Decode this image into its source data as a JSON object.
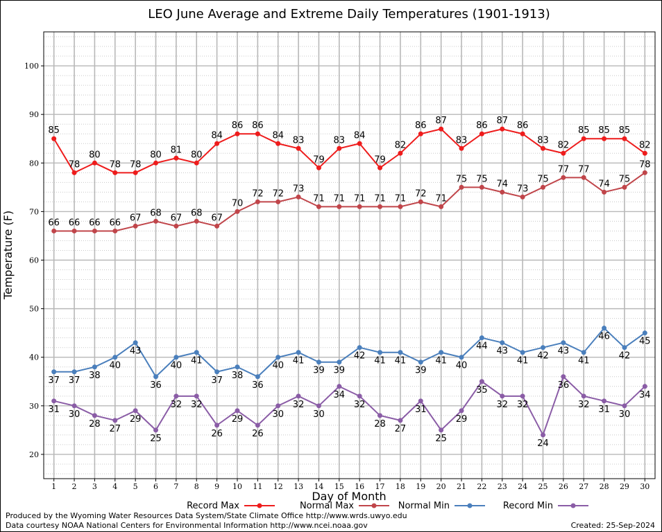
{
  "chart_data": {
    "type": "line",
    "title": "LEO June Average and Extreme Daily Temperatures (1901-1913)",
    "xlabel": "Day of Month",
    "ylabel": "Temperature (F)",
    "x": [
      1,
      2,
      3,
      4,
      5,
      6,
      7,
      8,
      9,
      10,
      11,
      12,
      13,
      14,
      15,
      16,
      17,
      18,
      19,
      20,
      21,
      22,
      23,
      24,
      25,
      26,
      27,
      28,
      29,
      30
    ],
    "xlim": [
      0.5,
      30.5
    ],
    "ylim": [
      15,
      107
    ],
    "yticks": [
      20,
      30,
      40,
      50,
      60,
      70,
      80,
      90,
      100
    ],
    "grid": true,
    "legend_position": "bottom",
    "series": [
      {
        "name": "Record Max",
        "color": "#ee1c1c",
        "values": [
          85,
          78,
          80,
          78,
          78,
          80,
          81,
          80,
          84,
          86,
          86,
          84,
          83,
          79,
          83,
          84,
          79,
          82,
          86,
          87,
          83,
          86,
          87,
          86,
          83,
          82,
          85,
          85,
          85,
          82
        ]
      },
      {
        "name": "Normal Max",
        "color": "#c0454a",
        "values": [
          66,
          66,
          66,
          66,
          67,
          68,
          67,
          68,
          67,
          70,
          72,
          72,
          73,
          71,
          71,
          71,
          71,
          71,
          72,
          71,
          75,
          75,
          74,
          73,
          75,
          77,
          77,
          74,
          75,
          78
        ]
      },
      {
        "name": "Normal Min",
        "color": "#4a7fbc",
        "values": [
          37,
          37,
          38,
          40,
          43,
          36,
          40,
          41,
          37,
          38,
          36,
          40,
          41,
          39,
          39,
          42,
          41,
          41,
          39,
          41,
          40,
          44,
          43,
          41,
          42,
          43,
          41,
          46,
          42,
          45
        ]
      },
      {
        "name": "Record Min",
        "color": "#8a5ca6",
        "values": [
          31,
          30,
          28,
          27,
          29,
          25,
          32,
          32,
          26,
          29,
          26,
          30,
          32,
          30,
          34,
          32,
          28,
          27,
          31,
          25,
          29,
          35,
          32,
          32,
          24,
          36,
          32,
          31,
          30,
          34
        ]
      }
    ]
  },
  "credits": {
    "line1": "Produced by the Wyoming Water Resources Data System/State Climate Office http://www.wrds.uwyo.edu",
    "line2": "Data courtesy NOAA National Centers for Environmental Information http://www.ncei.noaa.gov",
    "created": "Created:  25-Sep-2024"
  }
}
